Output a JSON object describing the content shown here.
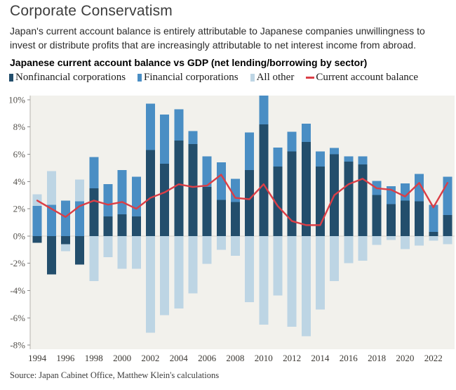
{
  "header": {
    "title": "Corporate Conservatism",
    "subtitle_lines": [
      "Japan's current account balance is entirely attributable to Japanese companies unwillingness to",
      "invest or distribute profits that are increasingly attributable to net interest income from abroad."
    ],
    "chart_title": "Japanese current account balance vs GDP (net lending/borrowing by sector)"
  },
  "chart_data": {
    "type": "bar",
    "stacked": true,
    "title": "Japanese current account balance vs GDP (net lending/borrowing by sector)",
    "categories": [
      1994,
      1995,
      1996,
      1997,
      1998,
      1999,
      2000,
      2001,
      2002,
      2003,
      2004,
      2005,
      2006,
      2007,
      2008,
      2009,
      2010,
      2011,
      2012,
      2013,
      2014,
      2015,
      2016,
      2017,
      2018,
      2019,
      2020,
      2021,
      2022,
      2023
    ],
    "series": [
      {
        "name": "Nonfinancial corporations",
        "color": "#234e6c",
        "values": [
          -0.5,
          -2.8,
          -0.6,
          -2.1,
          3.5,
          1.45,
          1.6,
          1.45,
          6.3,
          5.3,
          7.0,
          6.75,
          3.6,
          2.65,
          2.5,
          4.85,
          8.2,
          5.1,
          6.2,
          6.9,
          5.1,
          6.0,
          5.45,
          5.25,
          3.0,
          2.35,
          2.6,
          2.55,
          0.3,
          1.55
        ]
      },
      {
        "name": "Financial corporations",
        "color": "#4a8ec4",
        "values": [
          2.2,
          2.3,
          2.6,
          2.55,
          2.3,
          2.35,
          3.25,
          2.9,
          3.4,
          3.6,
          2.3,
          0.95,
          2.25,
          2.75,
          1.7,
          2.75,
          2.1,
          1.4,
          1.45,
          1.35,
          1.1,
          0.45,
          0.4,
          0.6,
          1.05,
          1.3,
          1.25,
          2.0,
          2.0,
          2.8
        ]
      },
      {
        "name": "All other",
        "color": "#bdd5e4",
        "values": [
          0.85,
          2.45,
          -0.5,
          1.6,
          -3.3,
          -1.55,
          -2.4,
          -2.4,
          -7.1,
          -5.8,
          -5.3,
          -4.2,
          -2.05,
          -1.0,
          -1.45,
          -4.85,
          -6.5,
          -4.35,
          -6.65,
          -7.35,
          -5.4,
          -3.3,
          -2.0,
          -1.8,
          -0.65,
          -0.3,
          -0.95,
          -0.7,
          -0.35,
          -0.6
        ]
      }
    ],
    "line_series": {
      "name": "Current account balance",
      "color": "#db3e46",
      "values": [
        2.6,
        2.0,
        1.4,
        2.2,
        2.6,
        2.3,
        2.5,
        2.0,
        2.8,
        3.2,
        3.8,
        3.6,
        3.7,
        4.5,
        2.8,
        2.7,
        3.8,
        2.2,
        1.1,
        0.8,
        0.8,
        3.0,
        3.8,
        4.2,
        3.5,
        3.4,
        2.9,
        3.9,
        2.1,
        3.9
      ]
    },
    "y_ticks": [
      {
        "value": 10,
        "label": "10%"
      },
      {
        "value": 8,
        "label": "8%"
      },
      {
        "value": 6,
        "label": "6%"
      },
      {
        "value": 4,
        "label": "4%"
      },
      {
        "value": 2,
        "label": "2%"
      },
      {
        "value": 0,
        "label": "0%"
      },
      {
        "value": -2,
        "label": "-2%"
      },
      {
        "value": -4,
        "label": "-4%"
      },
      {
        "value": -6,
        "label": "-6%"
      },
      {
        "value": -8,
        "label": "-8%"
      }
    ],
    "x_ticks": [
      "1994",
      "1996",
      "1998",
      "2000",
      "2002",
      "2004",
      "2006",
      "2008",
      "2010",
      "2012",
      "2014",
      "2016",
      "2018",
      "2020",
      "2022"
    ],
    "ylim": [
      -8.3,
      10.3
    ],
    "grid": "zero-line-only",
    "legend_position": "top",
    "plot_bg": "#f2f1ec",
    "axis_color": "#b5b2ac",
    "zero_line_color": "#d8d4cd",
    "tick_color": "#8a8a8a"
  },
  "footer": {
    "source": "Source: Japan Cabinet Office, Matthew Klein's calculations"
  }
}
